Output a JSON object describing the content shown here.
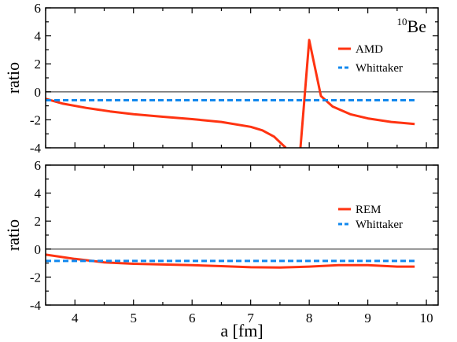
{
  "chart_data": [
    {
      "type": "line",
      "panel": "top",
      "annotation": "10Be",
      "annotation_sup": "10",
      "annotation_base": "Be",
      "ylabel": "ratio",
      "xlabel": "",
      "xlim": [
        3.5,
        10.2
      ],
      "ylim": [
        -4,
        6
      ],
      "xticks": [
        4,
        5,
        6,
        7,
        8,
        9,
        10
      ],
      "yticks": [
        -4,
        -2,
        0,
        2,
        4,
        6
      ],
      "ytick_labels": [
        "-4",
        "-2",
        "0",
        "2",
        "4",
        "6"
      ],
      "reference_line_y": 0,
      "legend_position": "upper-right",
      "series": [
        {
          "name": "AMD",
          "style": "solid",
          "color": "#ff3311",
          "segments": [
            [
              [
                3.5,
                -0.5
              ],
              [
                3.8,
                -0.85
              ],
              [
                4.2,
                -1.15
              ],
              [
                4.6,
                -1.4
              ],
              [
                5.0,
                -1.6
              ],
              [
                5.5,
                -1.78
              ],
              [
                6.0,
                -1.95
              ],
              [
                6.5,
                -2.15
              ],
              [
                7.0,
                -2.5
              ],
              [
                7.2,
                -2.75
              ],
              [
                7.4,
                -3.2
              ],
              [
                7.55,
                -3.8
              ],
              [
                7.6,
                -4.0
              ]
            ],
            [
              [
                7.85,
                -4.0
              ],
              [
                8.0,
                3.7
              ],
              [
                8.2,
                -0.3
              ],
              [
                8.4,
                -1.05
              ],
              [
                8.7,
                -1.6
              ],
              [
                9.0,
                -1.9
              ],
              [
                9.4,
                -2.15
              ],
              [
                9.8,
                -2.3
              ]
            ]
          ]
        },
        {
          "name": "Whittaker",
          "style": "dashed",
          "color": "#1188ee",
          "segments": [
            [
              [
                3.5,
                -0.6
              ],
              [
                9.8,
                -0.6
              ]
            ]
          ]
        }
      ]
    },
    {
      "type": "line",
      "panel": "bottom",
      "ylabel": "ratio",
      "xlabel": "a [fm]",
      "xlim": [
        3.5,
        10.2
      ],
      "ylim": [
        -4,
        6
      ],
      "xticks": [
        4,
        5,
        6,
        7,
        8,
        9,
        10
      ],
      "xtick_labels": [
        "4",
        "5",
        "6",
        "7",
        "8",
        "9",
        "10"
      ],
      "yticks": [
        -4,
        -2,
        0,
        2,
        4,
        6
      ],
      "ytick_labels": [
        "-4",
        "-2",
        "0",
        "2",
        "4",
        "6"
      ],
      "reference_line_y": 0,
      "legend_position": "right",
      "series": [
        {
          "name": "REM",
          "style": "solid",
          "color": "#ff3311",
          "segments": [
            [
              [
                3.5,
                -0.4
              ],
              [
                4.0,
                -0.7
              ],
              [
                4.5,
                -0.95
              ],
              [
                5.0,
                -1.05
              ],
              [
                5.5,
                -1.1
              ],
              [
                6.0,
                -1.15
              ],
              [
                6.5,
                -1.22
              ],
              [
                7.0,
                -1.3
              ],
              [
                7.5,
                -1.32
              ],
              [
                8.0,
                -1.25
              ],
              [
                8.5,
                -1.15
              ],
              [
                9.0,
                -1.15
              ],
              [
                9.5,
                -1.25
              ],
              [
                9.8,
                -1.25
              ]
            ]
          ]
        },
        {
          "name": "Whittaker",
          "style": "dashed",
          "color": "#1188ee",
          "segments": [
            [
              [
                3.5,
                -0.85
              ],
              [
                9.8,
                -0.85
              ]
            ]
          ]
        }
      ]
    }
  ]
}
